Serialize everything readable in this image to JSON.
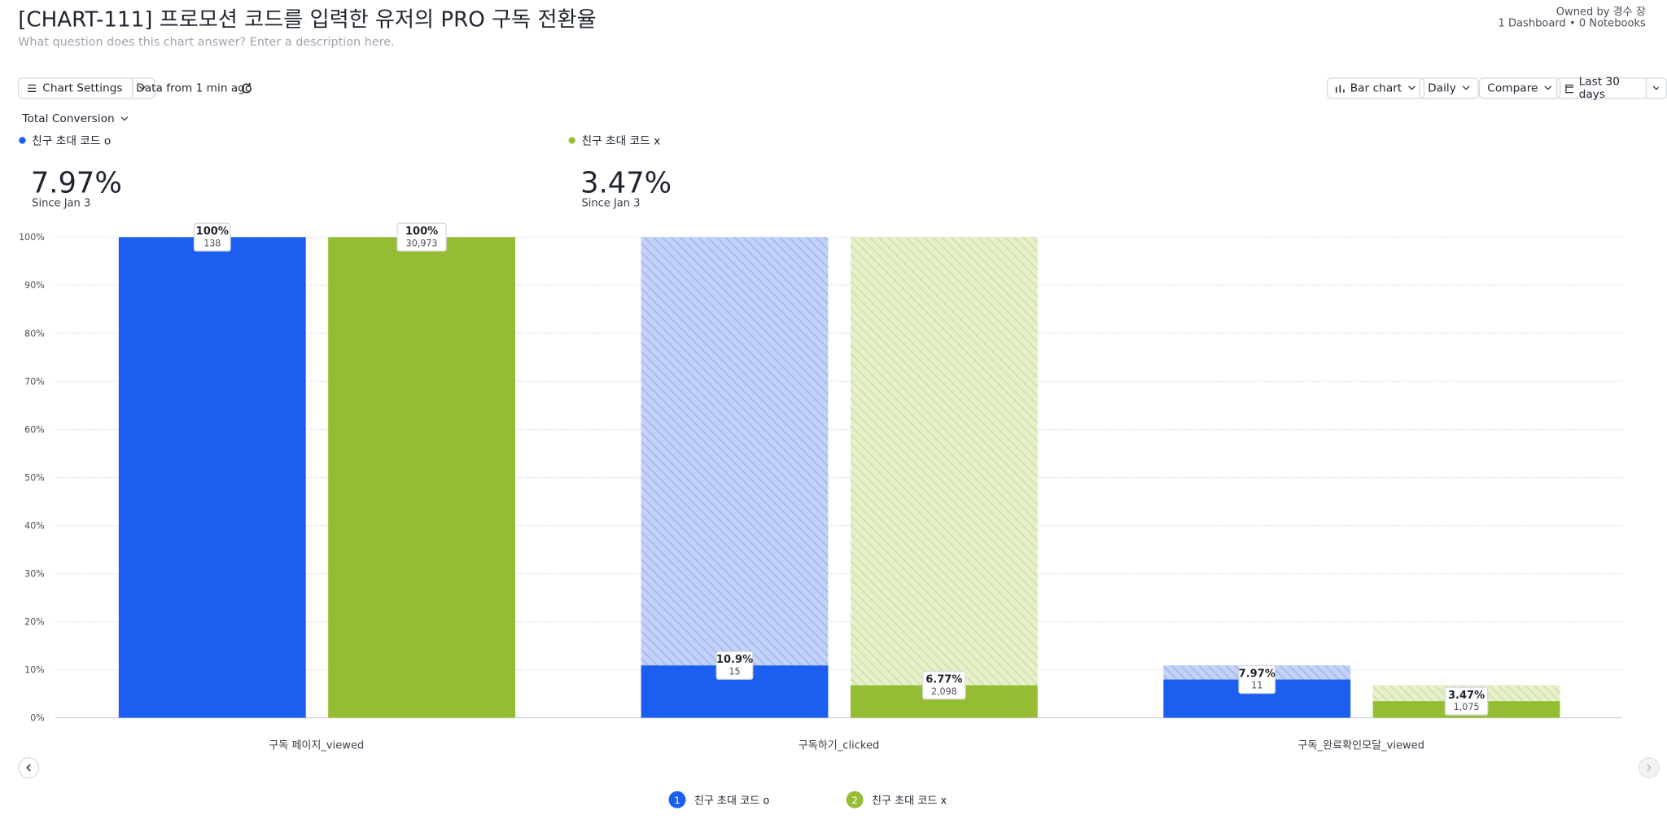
{
  "ui": {
    "title": "[CHART-111] 프로모션 코드를 입력한 유저의 PRO 구독 전환율",
    "description": "What question does this chart answer? Enter a description here.",
    "owner": "Owned by 경수 장",
    "links": "1 Dashboard • 0 Notebooks",
    "chart_settings": "Chart Settings",
    "data_age": "Data from 1 min ago",
    "chart_type_button": "Bar chart",
    "interval": "Daily",
    "compare": "Compare",
    "range": "Last 30 days",
    "metric": "Total Conversion",
    "summary": [
      {
        "value": "7.97%",
        "note": "Since Jan 3"
      },
      {
        "value": "3.47%",
        "note": "Since Jan 3"
      }
    ]
  },
  "chart_data": {
    "type": "funnel",
    "categories": [
      "구독 페이지_viewed",
      "구독하기_clicked",
      "구독_완료확인모달_viewed"
    ],
    "series": [
      {
        "name": "친구 초대 코드 o",
        "badge": "1",
        "color": "#1c5ef0",
        "hatch": "#c3d2f6",
        "stripe": "#a5bbf0",
        "values": [
          100,
          10.9,
          7.97
        ],
        "value_labels": [
          "100%",
          "10.9%",
          "7.97%"
        ],
        "counts": [
          138,
          15,
          11
        ]
      },
      {
        "name": "친구 초대 코드 x",
        "badge": "2",
        "color": "#95bd33",
        "hatch": "#e7f0cd",
        "stripe": "#d2e3a4",
        "values": [
          100,
          6.77,
          3.47
        ],
        "value_labels": [
          "100%",
          "6.77%",
          "3.47%"
        ],
        "counts": [
          30973,
          2098,
          1075
        ],
        "count_labels": [
          "30,973",
          "2,098",
          "1,075"
        ]
      }
    ],
    "ylim": [
      0,
      100
    ],
    "yticks": [
      {
        "value": 0,
        "label": "0%"
      },
      {
        "value": 10,
        "label": "10%"
      },
      {
        "value": 20,
        "label": "20%"
      },
      {
        "value": 30,
        "label": "30%"
      },
      {
        "value": 40,
        "label": "40%"
      },
      {
        "value": 50,
        "label": "50%"
      },
      {
        "value": 60,
        "label": "60%"
      },
      {
        "value": 70,
        "label": "70%"
      },
      {
        "value": 80,
        "label": "80%"
      },
      {
        "value": 90,
        "label": "90%"
      },
      {
        "value": 100,
        "label": "100%"
      }
    ],
    "grid": true
  }
}
